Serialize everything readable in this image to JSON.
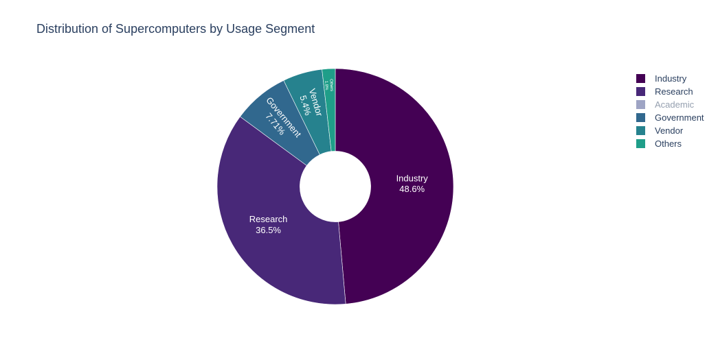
{
  "chart_data": {
    "type": "pie",
    "title": "Distribution of Supercomputers by Usage Segment",
    "hole": 0.3,
    "slices": [
      {
        "label": "Industry",
        "value": 48.6,
        "pct_text": "48.6%",
        "color": "#440154",
        "hidden": false
      },
      {
        "label": "Research",
        "value": 36.5,
        "pct_text": "36.5%",
        "color": "#482878",
        "hidden": false
      },
      {
        "label": "Academic",
        "value": 0,
        "pct_text": "",
        "color": "#3e4989",
        "hidden": true
      },
      {
        "label": "Government",
        "value": 7.71,
        "pct_text": "7.71%",
        "color": "#31688e",
        "hidden": false
      },
      {
        "label": "Vendor",
        "value": 5.4,
        "pct_text": "5.4%",
        "color": "#26828e",
        "hidden": false
      },
      {
        "label": "Others",
        "value": 1.8,
        "pct_text": "1.8%",
        "color": "#1f9e89",
        "hidden": false
      }
    ],
    "legend_position": "top-right"
  }
}
